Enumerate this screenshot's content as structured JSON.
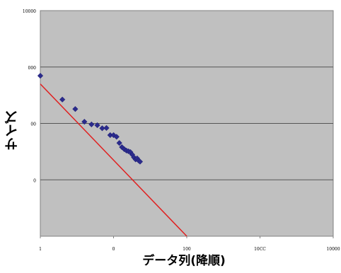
{
  "chart_data": {
    "type": "scatter",
    "title": "",
    "xlabel": "データ列(降順)",
    "ylabel": "サイズ",
    "x_scale": "log",
    "y_scale": "log",
    "xlim": [
      1,
      10000
    ],
    "ylim": [
      1,
      10000
    ],
    "x_tick_labels": [
      "1",
      "0",
      "100",
      "10CC",
      "10000"
    ],
    "y_tick_labels": [
      "10000",
      "000",
      "00",
      "0"
    ],
    "grid": "horizontal",
    "background_color": "#c0c0c0",
    "point_color": "#2b2b8c",
    "line_color": "#e02020",
    "series": [
      {
        "type": "scatter",
        "x": [
          1,
          2,
          3,
          4,
          5,
          6,
          7,
          8,
          9,
          10,
          11,
          12,
          13,
          14,
          15,
          16,
          17,
          18,
          19,
          20,
          21,
          22,
          23
        ],
        "y": [
          700,
          265,
          180,
          107,
          96,
          93,
          82,
          83,
          62,
          62,
          58,
          45,
          38,
          35,
          33,
          32,
          31,
          28,
          25,
          23,
          24,
          22,
          21
        ]
      },
      {
        "type": "line",
        "x": [
          1,
          100
        ],
        "y": [
          500,
          1
        ]
      }
    ]
  }
}
